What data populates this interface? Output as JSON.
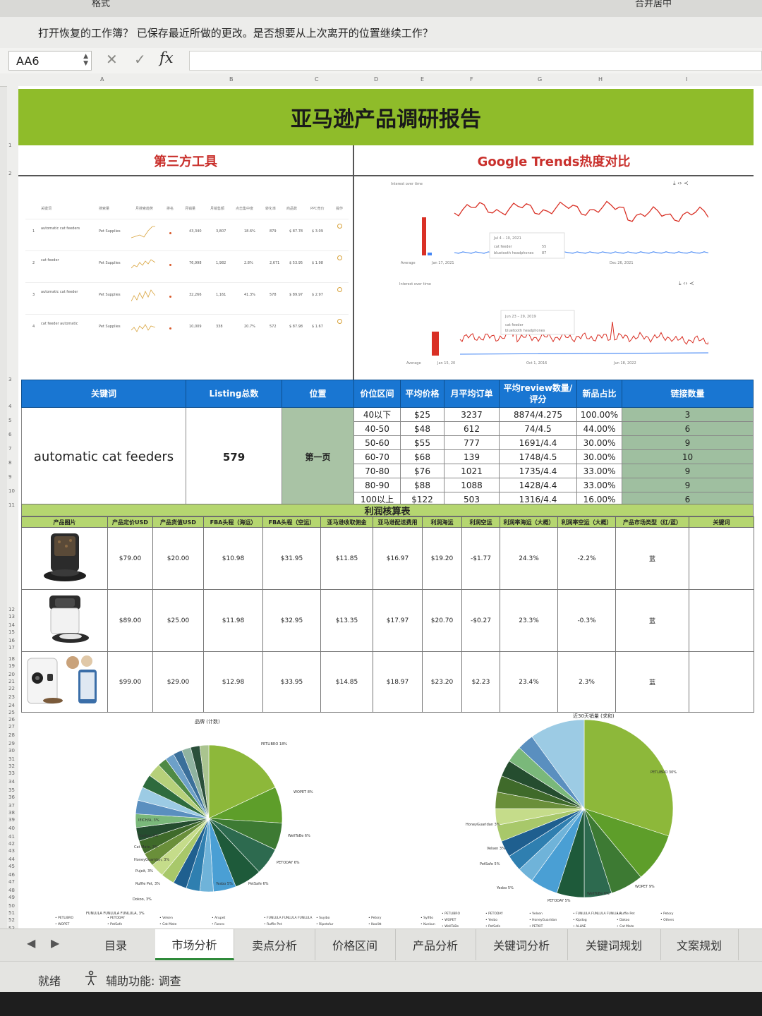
{
  "ribbon": {
    "format_label": "格式",
    "style_label": "合并居中"
  },
  "notice": {
    "text": "打开恢复的工作簿？ 已保存最近所做的更改。是否想要从上次离开的位置继续工作？"
  },
  "formula_bar": {
    "name_box": "AA6",
    "fx_label": "fx",
    "content": ""
  },
  "columns": [
    "A",
    "B",
    "C",
    "D",
    "E",
    "F",
    "G",
    "H",
    "I"
  ],
  "rows": [
    "1",
    "2",
    "3",
    "4",
    "5",
    "6",
    "7",
    "8",
    "9",
    "10",
    "11",
    "12",
    "13",
    "14",
    "15",
    "16",
    "17",
    "18",
    "19",
    "20",
    "21",
    "22",
    "23",
    "24",
    "25",
    "26",
    "27",
    "28",
    "29",
    "30",
    "31",
    "32",
    "33",
    "34",
    "35",
    "36",
    "37",
    "38",
    "39",
    "40",
    "41",
    "42",
    "43",
    "44",
    "45",
    "46",
    "47",
    "48",
    "49",
    "50",
    "51",
    "52",
    "53",
    "54",
    "55",
    "56",
    "57"
  ],
  "report": {
    "title": "亚马逊产品调研报告",
    "section_left": "第三方工具",
    "section_right": "Google Trends热度对比"
  },
  "tool_panel": {
    "headers": [
      "关键词",
      "搜索量",
      "月搜索趋势",
      "排名",
      "月销量",
      "月销售额",
      "点击集中度",
      "转化率",
      "商品数",
      "PPC竞价",
      "操作"
    ],
    "rows": [
      {
        "idx": "1",
        "keyword": "automatic cat feeders",
        "cat": "Pet Supplies",
        "a": "43,340",
        "b": "3,807",
        "c": "18.6%",
        "d": "879",
        "e": "$ 87.78",
        "f": "$ 3.09"
      },
      {
        "idx": "2",
        "keyword": "cat feeder",
        "cat": "Pet Supplies",
        "a": "76,998",
        "b": "1,982",
        "c": "2.8%",
        "d": "2,671",
        "e": "$ 53.95",
        "f": "$ 1.98"
      },
      {
        "idx": "3",
        "keyword": "automatic cat feeder",
        "cat": "Pet Supplies",
        "a": "32,266",
        "b": "1,161",
        "c": "41.3%",
        "d": "578",
        "e": "$ 89.97",
        "f": "$ 2.97"
      },
      {
        "idx": "4",
        "keyword": "cat feeder automatic",
        "cat": "Pet Supplies",
        "a": "10,009",
        "b": "338",
        "c": "20.7%",
        "d": "572",
        "e": "$ 87.98",
        "f": "$ 1.67"
      }
    ]
  },
  "trends": {
    "panel1": {
      "title": "Interest over time",
      "tooltip_date": "Jul 4 – 10, 2021",
      "s1": "cat feeder",
      "s2": "bluetooth headphones",
      "v1": "55",
      "v2": "87",
      "x_start": "Jan 17, 2021",
      "x_end": "Dec 26, 2021",
      "avg": "Average"
    },
    "panel2": {
      "title": "Interest over time",
      "tooltip_date": "Jun 23 – 29, 2019",
      "s1": "cat feeder",
      "s2": "bluetooth headphones",
      "x1": "Jan 15, 20",
      "x2": "Oct 1, 2016",
      "x3": "Jun 18, 2022",
      "avg": "Average"
    },
    "colors": {
      "series1": "#d93025",
      "series2": "#4285f4"
    }
  },
  "kw_table": {
    "headers": {
      "keyword": "关键词",
      "listing": "Listing总数",
      "position": "位置",
      "price_range": "价位区间",
      "avg_price": "平均价格",
      "monthly_orders": "月平均订单",
      "review": "平均review数量/评分",
      "new_ratio": "新品占比",
      "links": "链接数量"
    },
    "keyword": "automatic cat feeders",
    "listing_total": "579",
    "position": "第一页",
    "rows": [
      {
        "range": "40以下",
        "price": "$25",
        "orders": "3237",
        "review": "8874/4.275",
        "new": "100.00%",
        "links": "3"
      },
      {
        "range": "40-50",
        "price": "$48",
        "orders": "612",
        "review": "74/4.5",
        "new": "44.00%",
        "links": "6"
      },
      {
        "range": "50-60",
        "price": "$55",
        "orders": "777",
        "review": "1691/4.4",
        "new": "30.00%",
        "links": "9"
      },
      {
        "range": "60-70",
        "price": "$68",
        "orders": "139",
        "review": "1748/4.5",
        "new": "30.00%",
        "links": "10"
      },
      {
        "range": "70-80",
        "price": "$76",
        "orders": "1021",
        "review": "1735/4.4",
        "new": "33.00%",
        "links": "9"
      },
      {
        "range": "80-90",
        "price": "$88",
        "orders": "1088",
        "review": "1428/4.4",
        "new": "33.00%",
        "links": "9"
      },
      {
        "range": "100以上",
        "price": "$122",
        "orders": "503",
        "review": "1316/4.4",
        "new": "16.00%",
        "links": "6"
      }
    ]
  },
  "profit": {
    "title": "利润核算表",
    "headers": [
      "产品图片",
      "产品定价USD",
      "产品货值USD",
      "FBA头程（海运）",
      "FBA头程（空运）",
      "亚马逊收取佣金",
      "亚马逊配送费用",
      "利润海运",
      "利润空运",
      "利润率海运（大概）",
      "利润率空运（大概）",
      "产品市场类型（红/蓝）",
      "关键词"
    ],
    "rows": [
      {
        "price": "$79.00",
        "cost": "$20.00",
        "sea": "$10.98",
        "air": "$31.95",
        "commission": "$11.85",
        "fee": "$16.97",
        "profit_sea": "$19.20",
        "profit_air": "-$1.77",
        "margin_sea": "24.3%",
        "margin_air": "-2.2%",
        "market": "蓝",
        "keyword": ""
      },
      {
        "price": "$89.00",
        "cost": "$25.00",
        "sea": "$11.98",
        "air": "$32.95",
        "commission": "$13.35",
        "fee": "$17.97",
        "profit_sea": "$20.70",
        "profit_air": "-$0.27",
        "margin_sea": "23.3%",
        "margin_air": "-0.3%",
        "market": "蓝",
        "keyword": ""
      },
      {
        "price": "$99.00",
        "cost": "$29.00",
        "sea": "$12.98",
        "air": "$33.95",
        "commission": "$14.85",
        "fee": "$18.97",
        "profit_sea": "$23.20",
        "profit_air": "$2.23",
        "margin_sea": "23.4%",
        "margin_air": "2.3%",
        "market": "蓝",
        "keyword": ""
      }
    ]
  },
  "chart_data": [
    {
      "type": "pie",
      "title": "品牌 (计数)",
      "categories": [
        "PETLIBRO",
        "WOPET",
        "WellToBe",
        "PETODAY",
        "PetSafe",
        "Yesbo",
        "Velsen",
        "Cat Mate",
        "HoneyGuaridan",
        "Arupet",
        "Faroro",
        "Dokoo",
        "FUNLULA FUNLULA FUNLULA",
        "Ruffie Pet",
        "Pujeit",
        "Suyibo",
        "Ripetsfur",
        "Ichopet",
        "Petory",
        "Koolitt",
        "IEGUL",
        "Sylfdo",
        "Kunkun",
        "Meta",
        "Others"
      ],
      "values": [
        18,
        8,
        6,
        6,
        6,
        5,
        3,
        3,
        3,
        3,
        3,
        3,
        3,
        3,
        3,
        3,
        3,
        3,
        3,
        2,
        2,
        2,
        2,
        2,
        2
      ],
      "labels_shown": [
        "PETLIBRO 18%",
        "WOPET 8%",
        "WellToBe 6%",
        "PETODAY 6%",
        "PetSafe 6%",
        "Yesbo 5%",
        "Dokoo, 3%",
        "FUNLULA FUNLULA FUNLULA, 3%",
        "Ruffie Pet, 3%",
        "Pujeit, 3%",
        "HoneyGuaridan, 3%",
        "Cat Mate, 3%",
        "Kipdog, 3%",
        "IEICH/A, 3%"
      ]
    },
    {
      "type": "pie",
      "title": "近30天销量 (求和)",
      "categories": [
        "PETLIBRO",
        "WOPET",
        "WellToBe",
        "PETODAY",
        "Yesbo",
        "PetSafe",
        "Velsen",
        "HoneyGuaridan",
        "PETKIT",
        "FUNLULA FUNLULA FUNLULA",
        "Kipdog",
        "ALLNE",
        "Ruffie Pet",
        "Dokoo",
        "Cat Mate",
        "Petory",
        "Others"
      ],
      "values": [
        30,
        9,
        6,
        5,
        5,
        5,
        3,
        3,
        3,
        3,
        3,
        3,
        3,
        3,
        3,
        3,
        10
      ],
      "labels_shown": [
        "PETLIBRO 30%",
        "WOPET 9%",
        "WellToBe 6%",
        "PETODAY 5%",
        "Yesbo 5%",
        "PetSafe 5%",
        "Velsen 3%",
        "HoneyGuaridan 3%"
      ]
    }
  ],
  "pie_palette": [
    "#8db83a",
    "#5e9e2a",
    "#3d7a33",
    "#2d6a4f",
    "#1e5a3a",
    "#4a9fd4",
    "#6fb3d9",
    "#2f7fb0",
    "#1f5f8f",
    "#a8c86a",
    "#c5dc8a",
    "#6a8f3a",
    "#3f6a2a",
    "#254d2f",
    "#7ab87a",
    "#5a8fbf",
    "#9ccbe4",
    "#2e6b3d",
    "#b6d07a",
    "#4f8a45",
    "#6da0c8",
    "#3a6f9a",
    "#8fb3a0",
    "#2a4f3a",
    "#aac48f"
  ],
  "sheet_tabs": [
    "目录",
    "市场分析",
    "卖点分析",
    "价格区间",
    "产品分析",
    "关键词分析",
    "关键词规划",
    "文案规划"
  ],
  "status": {
    "ready": "就绪",
    "accessibility": "辅助功能: 调查"
  }
}
